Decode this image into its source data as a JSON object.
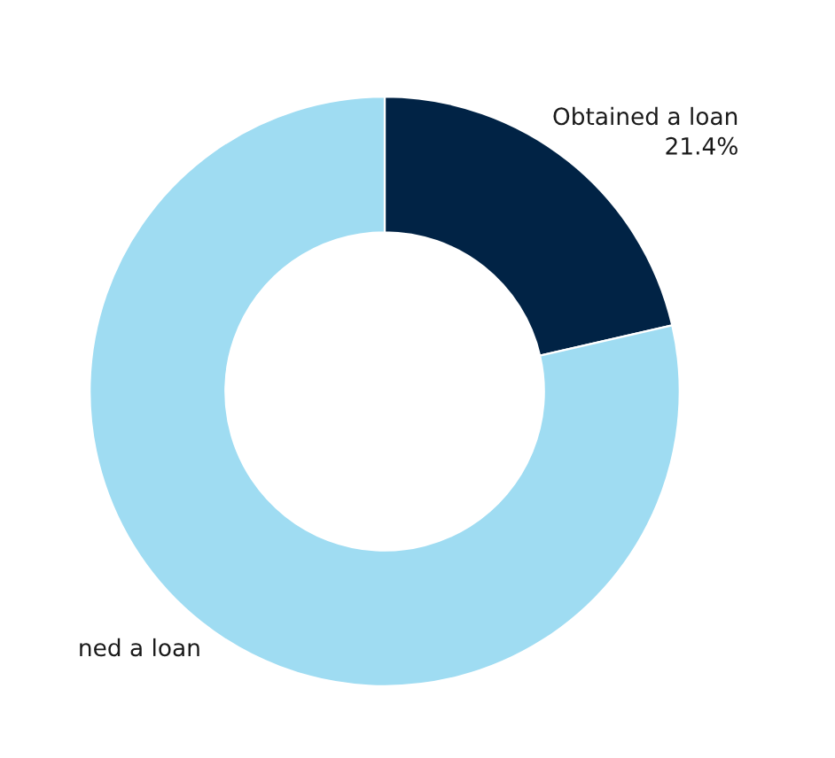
{
  "chart_data": {
    "type": "donut",
    "categories": [
      "Obtained a loan",
      "ned a loan"
    ],
    "values": [
      21.4,
      78.6
    ],
    "colors": [
      "#012345",
      "#9fdcf2"
    ],
    "value_labels": [
      "21.4%",
      null
    ],
    "legend": false
  }
}
